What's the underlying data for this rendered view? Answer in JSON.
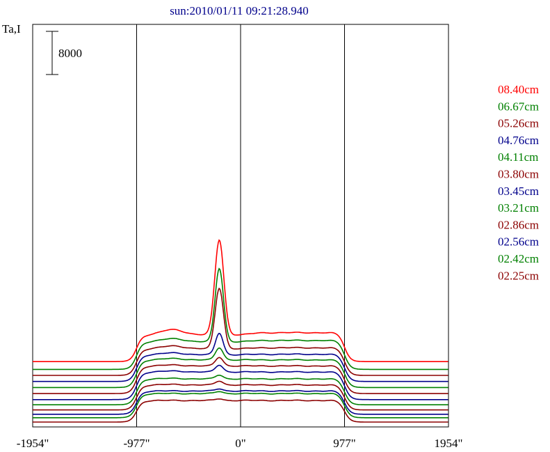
{
  "chart_data": {
    "type": "line",
    "title": "sun:2010/01/11 09:21:28.940",
    "ylabel": "Ta,I",
    "scale_bar_label": "8000",
    "xticks": [
      {
        "value": -1954,
        "label": "-1954\""
      },
      {
        "value": -977,
        "label": "-977\""
      },
      {
        "value": 0,
        "label": "0\""
      },
      {
        "value": 977,
        "label": "977\""
      },
      {
        "value": 1954,
        "label": "1954\""
      }
    ],
    "xlim": [
      -1954,
      1954
    ],
    "vertical_markers": [
      -977,
      0,
      977
    ],
    "colors": {
      "red": "#ff0000",
      "green": "#008000",
      "maroon": "#8b0000",
      "blue": "#00008b",
      "axis": "#000000"
    },
    "series": [
      {
        "name": "08.40cm",
        "color": "#ff0000",
        "base": 14000,
        "plateau": 6200,
        "left_bump": 1200,
        "right_rise": 500,
        "peak": 22000,
        "peak_x": -200,
        "peak_width": 60
      },
      {
        "name": "06.67cm",
        "color": "#008000",
        "base": 12200,
        "plateau": 6400,
        "left_bump": 700,
        "right_rise": 300,
        "peak": 17000,
        "peak_x": -200,
        "peak_width": 55
      },
      {
        "name": "05.26cm",
        "color": "#8b0000",
        "base": 10800,
        "plateau": 6200,
        "left_bump": 600,
        "right_rise": 200,
        "peak": 14000,
        "peak_x": -200,
        "peak_width": 55
      },
      {
        "name": "04.76cm",
        "color": "#00008b",
        "base": 9400,
        "plateau": 6200,
        "left_bump": 400,
        "right_rise": 100,
        "peak": 5000,
        "peak_x": -200,
        "peak_width": 50
      },
      {
        "name": "04.11cm",
        "color": "#008000",
        "base": 8000,
        "plateau": 6400,
        "left_bump": 300,
        "right_rise": 0,
        "peak": 2800,
        "peak_x": -200,
        "peak_width": 50
      },
      {
        "name": "03.80cm",
        "color": "#8b0000",
        "base": 6600,
        "plateau": 6400,
        "left_bump": 200,
        "right_rise": 0,
        "peak": 2000,
        "peak_x": -200,
        "peak_width": 50
      },
      {
        "name": "03.45cm",
        "color": "#00008b",
        "base": 5200,
        "plateau": 6400,
        "left_bump": 200,
        "right_rise": 0,
        "peak": 1600,
        "peak_x": -200,
        "peak_width": 50
      },
      {
        "name": "03.21cm",
        "color": "#008000",
        "base": 4000,
        "plateau": 6000,
        "left_bump": 100,
        "right_rise": 0,
        "peak": 900,
        "peak_x": -200,
        "peak_width": 50
      },
      {
        "name": "02.86cm",
        "color": "#8b0000",
        "base": 2800,
        "plateau": 5800,
        "left_bump": 100,
        "right_rise": 0,
        "peak": 900,
        "peak_x": -200,
        "peak_width": 50
      },
      {
        "name": "02.56cm",
        "color": "#00008b",
        "base": 1800,
        "plateau": 5400,
        "left_bump": 0,
        "right_rise": 0,
        "peak": 500,
        "peak_x": -200,
        "peak_width": 50
      },
      {
        "name": "02.42cm",
        "color": "#008000",
        "base": 1000,
        "plateau": 5600,
        "left_bump": 0,
        "right_rise": 0,
        "peak": 500,
        "peak_x": -200,
        "peak_width": 50
      },
      {
        "name": "02.25cm",
        "color": "#8b0000",
        "base": 0,
        "plateau": 5000,
        "left_bump": 0,
        "right_rise": 0,
        "peak": 400,
        "peak_x": -200,
        "peak_width": 50
      }
    ]
  }
}
